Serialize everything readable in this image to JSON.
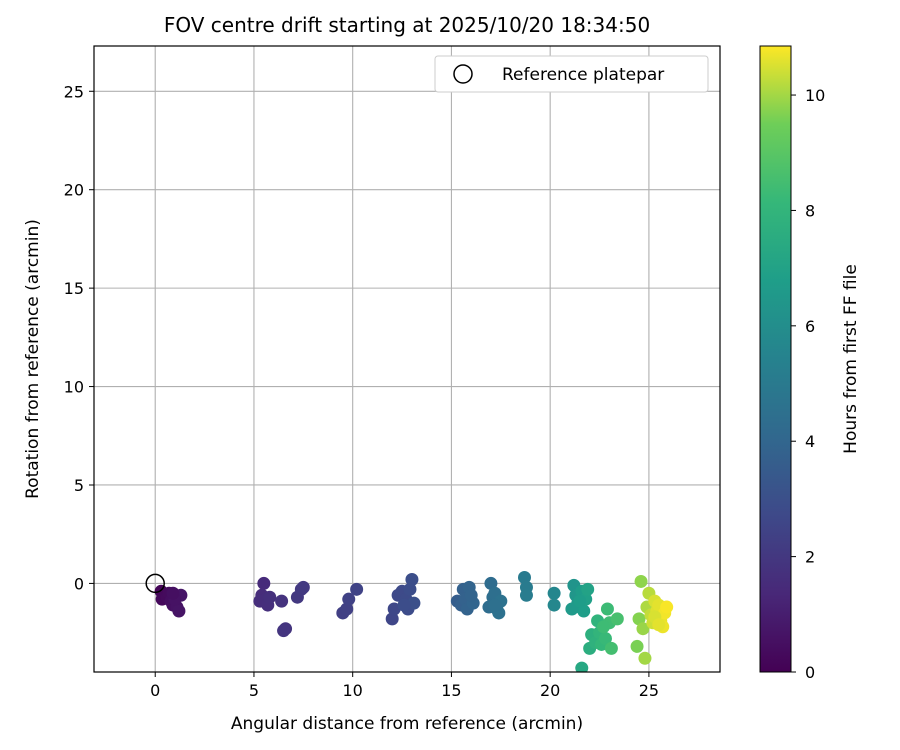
{
  "chart_data": {
    "type": "scatter",
    "title": "FOV centre drift starting at 2025/10/20 18:34:50",
    "xlabel": "Angular distance from reference (arcmin)",
    "ylabel": "Rotation from reference (arcmin)",
    "xlim": [
      -3.1,
      28.6
    ],
    "ylim": [
      -4.5,
      27.3
    ],
    "xticks": [
      0,
      5,
      10,
      15,
      20,
      25
    ],
    "yticks": [
      0,
      5,
      10,
      15,
      20,
      25
    ],
    "grid": true,
    "legend": {
      "position": "top-right",
      "entries": [
        "Reference platepar"
      ]
    },
    "reference_point": {
      "x": 0,
      "y": 0,
      "label": "Reference platepar"
    },
    "colorbar": {
      "label": "Hours from first FF file",
      "min": 0,
      "max": 10.85,
      "ticks": [
        0,
        2,
        4,
        6,
        8,
        10
      ],
      "colormap": "viridis"
    },
    "points": [
      {
        "x": 0.3,
        "y": -0.4,
        "t": 0.1
      },
      {
        "x": 0.4,
        "y": -0.5,
        "t": 0.15
      },
      {
        "x": 0.5,
        "y": -0.6,
        "t": 0.2
      },
      {
        "x": 0.35,
        "y": -0.8,
        "t": 0.25
      },
      {
        "x": 0.6,
        "y": -0.7,
        "t": 0.3
      },
      {
        "x": 0.7,
        "y": -0.5,
        "t": 0.35
      },
      {
        "x": 0.8,
        "y": -0.9,
        "t": 0.45
      },
      {
        "x": 0.9,
        "y": -1.1,
        "t": 0.5
      },
      {
        "x": 1.0,
        "y": -0.6,
        "t": 0.55
      },
      {
        "x": 1.1,
        "y": -1.2,
        "t": 0.6
      },
      {
        "x": 1.2,
        "y": -1.4,
        "t": 0.65
      },
      {
        "x": 1.3,
        "y": -0.6,
        "t": 0.7
      },
      {
        "x": 1.0,
        "y": -0.8,
        "t": 0.6
      },
      {
        "x": 0.9,
        "y": -0.5,
        "t": 0.5
      },
      {
        "x": 5.5,
        "y": 0.0,
        "t": 1.5
      },
      {
        "x": 5.4,
        "y": -0.6,
        "t": 1.55
      },
      {
        "x": 5.6,
        "y": -0.8,
        "t": 1.6
      },
      {
        "x": 5.3,
        "y": -0.9,
        "t": 1.6
      },
      {
        "x": 5.7,
        "y": -1.1,
        "t": 1.65
      },
      {
        "x": 5.8,
        "y": -0.7,
        "t": 1.7
      },
      {
        "x": 6.4,
        "y": -0.9,
        "t": 1.8
      },
      {
        "x": 6.6,
        "y": -2.3,
        "t": 1.85
      },
      {
        "x": 6.5,
        "y": -2.4,
        "t": 1.9
      },
      {
        "x": 7.2,
        "y": -0.7,
        "t": 2.0
      },
      {
        "x": 7.4,
        "y": -0.3,
        "t": 2.05
      },
      {
        "x": 7.5,
        "y": -0.2,
        "t": 2.1
      },
      {
        "x": 9.5,
        "y": -1.5,
        "t": 2.3
      },
      {
        "x": 9.7,
        "y": -1.3,
        "t": 2.35
      },
      {
        "x": 9.8,
        "y": -0.8,
        "t": 2.4
      },
      {
        "x": 10.2,
        "y": -0.3,
        "t": 2.45
      },
      {
        "x": 12.0,
        "y": -1.8,
        "t": 2.6
      },
      {
        "x": 12.1,
        "y": -1.3,
        "t": 2.65
      },
      {
        "x": 12.3,
        "y": -0.6,
        "t": 2.7
      },
      {
        "x": 12.5,
        "y": -0.4,
        "t": 2.75
      },
      {
        "x": 12.7,
        "y": -0.8,
        "t": 2.8
      },
      {
        "x": 12.8,
        "y": -1.3,
        "t": 2.85
      },
      {
        "x": 12.9,
        "y": -0.3,
        "t": 2.9
      },
      {
        "x": 13.0,
        "y": 0.2,
        "t": 2.95
      },
      {
        "x": 13.1,
        "y": -1.0,
        "t": 3.0
      },
      {
        "x": 12.6,
        "y": -1.1,
        "t": 2.9
      },
      {
        "x": 15.3,
        "y": -0.9,
        "t": 3.6
      },
      {
        "x": 15.5,
        "y": -1.1,
        "t": 3.7
      },
      {
        "x": 15.6,
        "y": -0.3,
        "t": 3.75
      },
      {
        "x": 15.7,
        "y": -0.8,
        "t": 3.8
      },
      {
        "x": 15.8,
        "y": -1.3,
        "t": 3.85
      },
      {
        "x": 15.9,
        "y": -0.2,
        "t": 3.9
      },
      {
        "x": 16.1,
        "y": -1.0,
        "t": 3.95
      },
      {
        "x": 16.0,
        "y": -0.6,
        "t": 3.9
      },
      {
        "x": 17.0,
        "y": 0.0,
        "t": 4.3
      },
      {
        "x": 16.9,
        "y": -1.2,
        "t": 4.35
      },
      {
        "x": 17.1,
        "y": -0.7,
        "t": 4.4
      },
      {
        "x": 17.2,
        "y": -0.5,
        "t": 4.45
      },
      {
        "x": 17.3,
        "y": -1.3,
        "t": 4.5
      },
      {
        "x": 17.4,
        "y": -1.5,
        "t": 4.55
      },
      {
        "x": 17.5,
        "y": -0.9,
        "t": 4.6
      },
      {
        "x": 17.2,
        "y": -1.1,
        "t": 4.5
      },
      {
        "x": 18.7,
        "y": 0.3,
        "t": 5.0
      },
      {
        "x": 18.8,
        "y": -0.2,
        "t": 5.05
      },
      {
        "x": 18.8,
        "y": -0.6,
        "t": 5.1
      },
      {
        "x": 20.2,
        "y": -0.5,
        "t": 5.6
      },
      {
        "x": 20.2,
        "y": -1.1,
        "t": 5.65
      },
      {
        "x": 21.2,
        "y": -0.1,
        "t": 6.3
      },
      {
        "x": 21.3,
        "y": -0.6,
        "t": 6.4
      },
      {
        "x": 21.4,
        "y": -1.0,
        "t": 6.5
      },
      {
        "x": 21.5,
        "y": -1.2,
        "t": 6.6
      },
      {
        "x": 21.6,
        "y": -0.4,
        "t": 6.7
      },
      {
        "x": 21.7,
        "y": -1.4,
        "t": 6.8
      },
      {
        "x": 21.8,
        "y": -0.8,
        "t": 6.9
      },
      {
        "x": 21.9,
        "y": -0.3,
        "t": 7.0
      },
      {
        "x": 21.1,
        "y": -1.3,
        "t": 6.6
      },
      {
        "x": 21.5,
        "y": -0.9,
        "t": 6.75
      },
      {
        "x": 21.6,
        "y": -4.3,
        "t": 7.3
      },
      {
        "x": 22.0,
        "y": -3.3,
        "t": 7.6
      },
      {
        "x": 22.1,
        "y": -2.6,
        "t": 7.7
      },
      {
        "x": 22.3,
        "y": -3.0,
        "t": 7.8
      },
      {
        "x": 22.4,
        "y": -1.9,
        "t": 7.9
      },
      {
        "x": 22.5,
        "y": -2.5,
        "t": 8.0
      },
      {
        "x": 22.6,
        "y": -3.1,
        "t": 8.1
      },
      {
        "x": 22.8,
        "y": -2.8,
        "t": 8.2
      },
      {
        "x": 22.9,
        "y": -1.3,
        "t": 8.3
      },
      {
        "x": 23.0,
        "y": -2.0,
        "t": 8.4
      },
      {
        "x": 23.1,
        "y": -3.3,
        "t": 8.5
      },
      {
        "x": 23.4,
        "y": -1.8,
        "t": 8.6
      },
      {
        "x": 22.7,
        "y": -2.2,
        "t": 8.35
      },
      {
        "x": 24.4,
        "y": -3.2,
        "t": 9.6
      },
      {
        "x": 24.5,
        "y": -1.8,
        "t": 9.7
      },
      {
        "x": 24.6,
        "y": 0.1,
        "t": 9.8
      },
      {
        "x": 24.7,
        "y": -2.3,
        "t": 9.9
      },
      {
        "x": 24.8,
        "y": -3.8,
        "t": 10.0
      },
      {
        "x": 24.9,
        "y": -1.2,
        "t": 10.1
      },
      {
        "x": 25.0,
        "y": -0.5,
        "t": 10.2
      },
      {
        "x": 25.1,
        "y": -1.6,
        "t": 10.3
      },
      {
        "x": 25.2,
        "y": -2.0,
        "t": 10.4
      },
      {
        "x": 25.3,
        "y": -0.9,
        "t": 10.5
      },
      {
        "x": 25.4,
        "y": -1.4,
        "t": 10.55
      },
      {
        "x": 25.5,
        "y": -1.1,
        "t": 10.6
      },
      {
        "x": 25.6,
        "y": -1.9,
        "t": 10.65
      },
      {
        "x": 25.7,
        "y": -2.2,
        "t": 10.7
      },
      {
        "x": 25.8,
        "y": -1.5,
        "t": 10.75
      },
      {
        "x": 25.9,
        "y": -1.2,
        "t": 10.8
      },
      {
        "x": 25.3,
        "y": -1.7,
        "t": 10.5
      },
      {
        "x": 25.5,
        "y": -2.1,
        "t": 10.6
      }
    ]
  }
}
